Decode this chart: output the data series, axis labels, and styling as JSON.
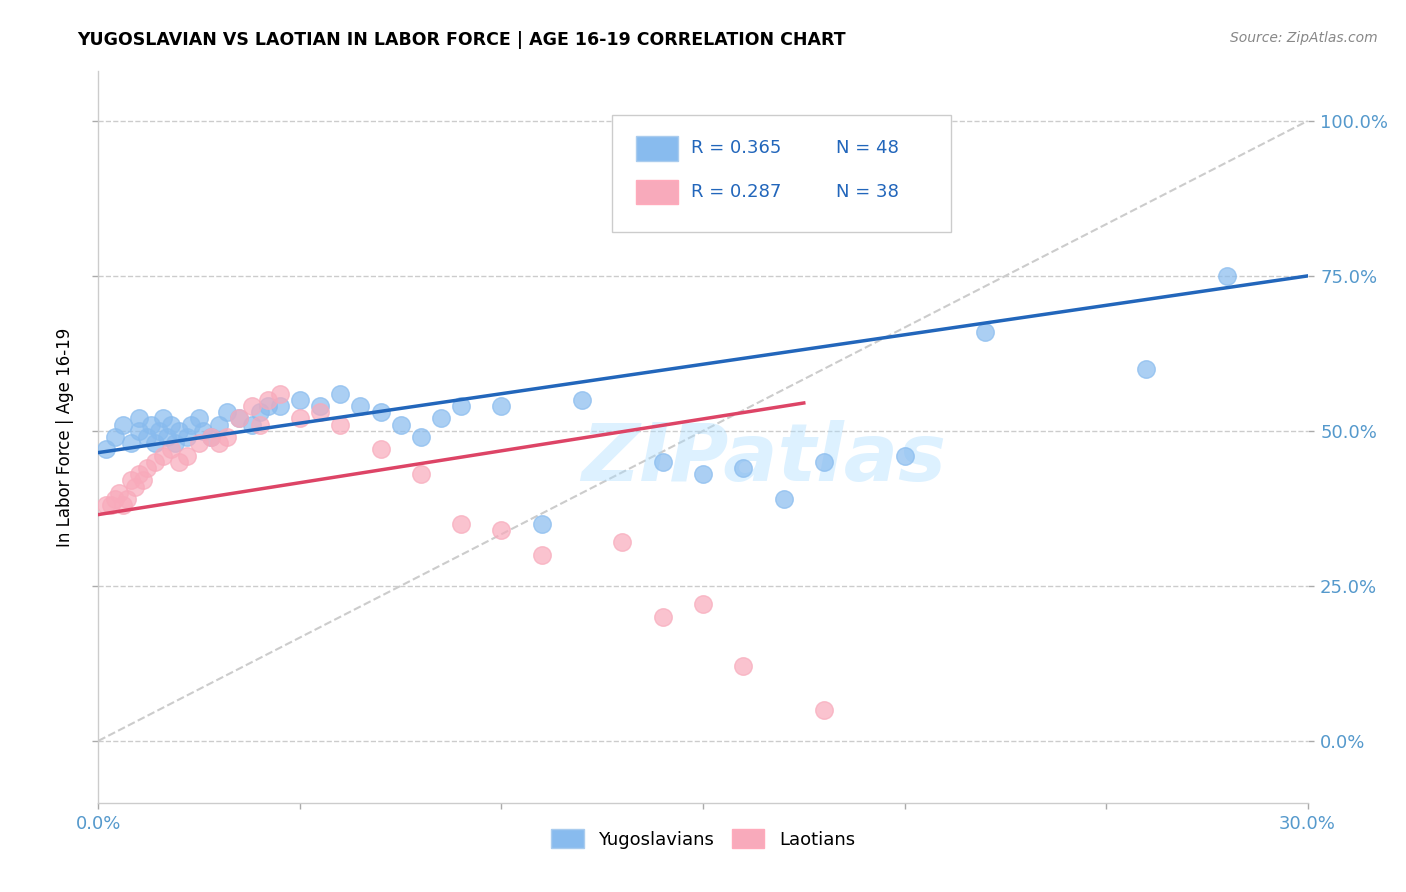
{
  "title": "YUGOSLAVIAN VS LAOTIAN IN LABOR FORCE | AGE 16-19 CORRELATION CHART",
  "source": "Source: ZipAtlas.com",
  "ylabel": "In Labor Force | Age 16-19",
  "xlim": [
    0.0,
    0.3
  ],
  "ylim_display": [
    -0.1,
    1.08
  ],
  "ytick_vals": [
    0.0,
    0.25,
    0.5,
    0.75,
    1.0
  ],
  "ytick_labels": [
    "0.0%",
    "25.0%",
    "50.0%",
    "75.0%",
    "100.0%"
  ],
  "xtick_vals": [
    0.0,
    0.05,
    0.1,
    0.15,
    0.2,
    0.25,
    0.3
  ],
  "xtick_labels": [
    "0.0%",
    "",
    "",
    "",
    "",
    "",
    "30.0%"
  ],
  "legend_blue_label": "Yugoslavians",
  "legend_pink_label": "Laotians",
  "R_blue": "R = 0.365",
  "N_blue": "N = 48",
  "R_pink": "R = 0.287",
  "N_pink": "N = 38",
  "blue_scatter_color": "#88bbee",
  "pink_scatter_color": "#f8aabb",
  "blue_line_color": "#2266bb",
  "pink_line_color": "#dd4466",
  "diagonal_color": "#cccccc",
  "watermark": "ZIPatlas",
  "yug_x": [
    0.002,
    0.004,
    0.006,
    0.008,
    0.01,
    0.01,
    0.012,
    0.013,
    0.014,
    0.015,
    0.016,
    0.017,
    0.018,
    0.019,
    0.02,
    0.022,
    0.023,
    0.025,
    0.026,
    0.028,
    0.03,
    0.032,
    0.035,
    0.038,
    0.04,
    0.042,
    0.045,
    0.05,
    0.055,
    0.06,
    0.065,
    0.07,
    0.075,
    0.08,
    0.085,
    0.09,
    0.1,
    0.11,
    0.12,
    0.14,
    0.15,
    0.16,
    0.17,
    0.18,
    0.2,
    0.22,
    0.26,
    0.28
  ],
  "yug_y": [
    0.47,
    0.49,
    0.51,
    0.48,
    0.5,
    0.52,
    0.49,
    0.51,
    0.48,
    0.5,
    0.52,
    0.49,
    0.51,
    0.48,
    0.5,
    0.49,
    0.51,
    0.52,
    0.5,
    0.49,
    0.51,
    0.53,
    0.52,
    0.51,
    0.53,
    0.54,
    0.54,
    0.55,
    0.54,
    0.56,
    0.54,
    0.53,
    0.51,
    0.49,
    0.52,
    0.54,
    0.54,
    0.35,
    0.55,
    0.45,
    0.43,
    0.44,
    0.39,
    0.45,
    0.46,
    0.66,
    0.6,
    0.75
  ],
  "lao_x": [
    0.002,
    0.003,
    0.004,
    0.005,
    0.006,
    0.007,
    0.008,
    0.009,
    0.01,
    0.011,
    0.012,
    0.014,
    0.016,
    0.018,
    0.02,
    0.022,
    0.025,
    0.028,
    0.03,
    0.032,
    0.035,
    0.038,
    0.04,
    0.042,
    0.045,
    0.05,
    0.055,
    0.06,
    0.07,
    0.08,
    0.09,
    0.1,
    0.11,
    0.13,
    0.14,
    0.15,
    0.16,
    0.18
  ],
  "lao_y": [
    0.38,
    0.38,
    0.39,
    0.4,
    0.38,
    0.39,
    0.42,
    0.41,
    0.43,
    0.42,
    0.44,
    0.45,
    0.46,
    0.47,
    0.45,
    0.46,
    0.48,
    0.49,
    0.48,
    0.49,
    0.52,
    0.54,
    0.51,
    0.55,
    0.56,
    0.52,
    0.53,
    0.51,
    0.47,
    0.43,
    0.35,
    0.34,
    0.3,
    0.32,
    0.2,
    0.22,
    0.12,
    0.05
  ],
  "blue_line_x": [
    0.0,
    0.3
  ],
  "blue_line_y": [
    0.465,
    0.75
  ],
  "pink_line_x": [
    0.0,
    0.175
  ],
  "pink_line_y": [
    0.365,
    0.545
  ]
}
